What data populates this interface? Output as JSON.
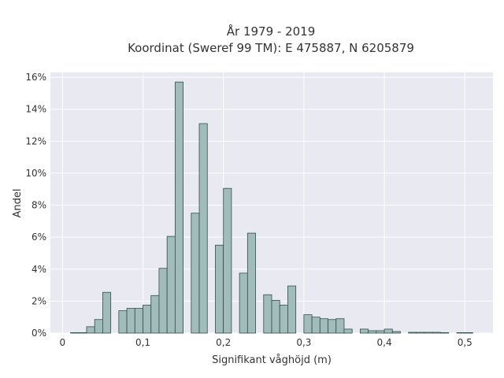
{
  "chart_data": {
    "type": "bar",
    "title": "År 1979 - 2019",
    "subtitle": "Koordinat (Sweref 99 TM): E 475887, N 6205879",
    "xlabel": "Signifikant våghöjd (m)",
    "ylabel": "Andel",
    "xlim": [
      -0.015,
      0.535
    ],
    "ylim": [
      0,
      16.3
    ],
    "x_ticks": [
      0,
      0.1,
      0.2,
      0.3,
      0.4,
      0.5
    ],
    "x_tick_labels": [
      "0",
      "0,1",
      "0,2",
      "0,3",
      "0,4",
      "0,5"
    ],
    "y_ticks": [
      0,
      2,
      4,
      6,
      8,
      10,
      12,
      14,
      16
    ],
    "y_tick_labels": [
      "0%",
      "2%",
      "4%",
      "6%",
      "8%",
      "10%",
      "12%",
      "14%",
      "16%"
    ],
    "grid": true,
    "bin_width": 0.01,
    "bin_start": 0.01,
    "values": [
      0.03,
      0.03,
      0.4,
      0.85,
      2.55,
      0,
      1.4,
      1.55,
      1.55,
      1.75,
      2.35,
      4.05,
      6.05,
      15.7,
      0,
      7.5,
      13.1,
      0,
      5.5,
      9.05,
      0,
      3.75,
      6.25,
      0,
      2.4,
      2.05,
      1.75,
      2.95,
      0,
      1.15,
      1.0,
      0.9,
      0.85,
      0.9,
      0.25,
      0,
      0.25,
      0.15,
      0.15,
      0.25,
      0.1,
      0,
      0.05,
      0.05,
      0.05,
      0.05,
      0.03,
      0,
      0.03,
      0.03
    ],
    "colors": {
      "bar_fill": "#a2bbbb",
      "bar_stroke": "#2f4f4f",
      "plot_bg": "#e9e9f1",
      "grid": "#ffffff",
      "text": "#333333"
    }
  }
}
